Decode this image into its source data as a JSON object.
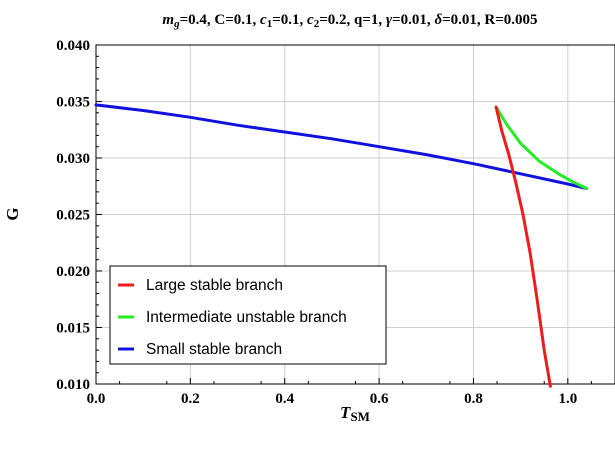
{
  "chart_data": {
    "type": "line",
    "title_parts": [
      {
        "t": "m",
        "i": true
      },
      {
        "t": "g",
        "sub": true,
        "i": true
      },
      {
        "t": "=0.4, C=0.1, "
      },
      {
        "t": "c",
        "i": true
      },
      {
        "t": "1",
        "sub": true
      },
      {
        "t": "=0.1, "
      },
      {
        "t": "c",
        "i": true
      },
      {
        "t": "2",
        "sub": true
      },
      {
        "t": "=0.2, q=1, "
      },
      {
        "t": "γ",
        "i": true
      },
      {
        "t": "=0.01, "
      },
      {
        "t": "δ",
        "i": true
      },
      {
        "t": "=0.01, R=0.005"
      }
    ],
    "xlabel_main": "T",
    "xlabel_sub": "SM",
    "ylabel": "G",
    "xlim": [
      0.0,
      1.1
    ],
    "ylim": [
      0.01,
      0.04
    ],
    "x_ticks": [
      0.0,
      0.2,
      0.4,
      0.6,
      0.8,
      1.0
    ],
    "x_tick_labels": [
      "0.0",
      "0.2",
      "0.4",
      "0.6",
      "0.8",
      "1.0"
    ],
    "y_ticks": [
      0.01,
      0.015,
      0.02,
      0.025,
      0.03,
      0.035,
      0.04
    ],
    "y_tick_labels": [
      "0.010",
      "0.015",
      "0.020",
      "0.025",
      "0.030",
      "0.035",
      "0.040"
    ],
    "grid": true,
    "legend_position": "bottom-left",
    "series": [
      {
        "name": "Large stable branch",
        "color": "#ee1c1c",
        "x": [
          0.848,
          0.86,
          0.875,
          0.89,
          0.905,
          0.92,
          0.935,
          0.95,
          0.963
        ],
        "y": [
          0.0345,
          0.0324,
          0.0303,
          0.0278,
          0.025,
          0.0216,
          0.0175,
          0.013,
          0.0098
        ]
      },
      {
        "name": "Intermediate unstable branch",
        "color": "#22ee22",
        "x": [
          0.848,
          0.87,
          0.9,
          0.94,
          0.98,
          1.01,
          1.04
        ],
        "y": [
          0.0345,
          0.033,
          0.0313,
          0.0297,
          0.0286,
          0.0279,
          0.0273
        ]
      },
      {
        "name": "Small stable branch",
        "color": "#1111dd",
        "x": [
          0.0,
          0.1,
          0.2,
          0.3,
          0.4,
          0.5,
          0.6,
          0.7,
          0.8,
          0.9,
          1.0,
          1.04
        ],
        "y": [
          0.0347,
          0.0342,
          0.0336,
          0.0329,
          0.0323,
          0.0317,
          0.031,
          0.0303,
          0.0295,
          0.0286,
          0.0277,
          0.0273
        ]
      }
    ]
  }
}
